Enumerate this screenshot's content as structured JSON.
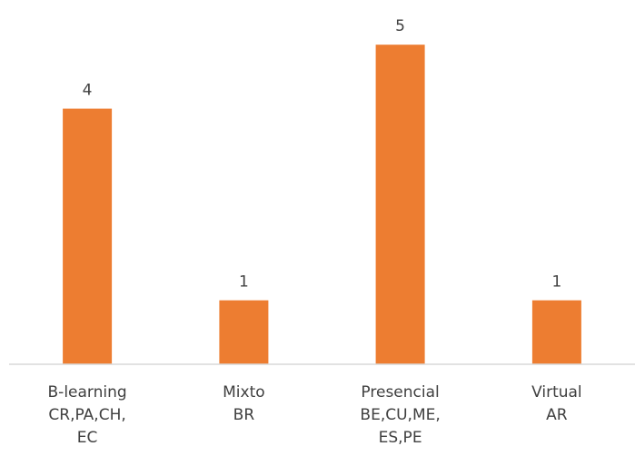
{
  "chart_data": {
    "type": "bar",
    "categories": [
      [
        "B-learning",
        "CR,PA,CH,",
        "EC"
      ],
      [
        "Mixto",
        "BR"
      ],
      [
        "Presencial",
        "BE,CU,ME,",
        "ES,PE"
      ],
      [
        "Virtual",
        "AR"
      ]
    ],
    "values": [
      4,
      1,
      5,
      1
    ],
    "data_labels": [
      "4",
      "1",
      "5",
      "1"
    ],
    "ylim": [
      0,
      5.6
    ],
    "grid": false,
    "legend": "none",
    "bar_color": "#ED7D31",
    "axis_color": "#D9D9D9",
    "text_color": "#404040"
  }
}
